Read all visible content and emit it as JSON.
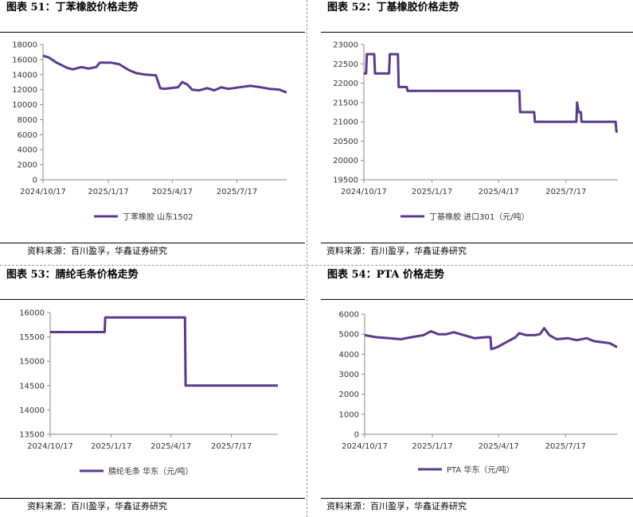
{
  "line_color": "#5a3a8c",
  "source_text": "资料来源：百川盈孚，华鑫证券研究",
  "panels": [
    {
      "title": "图表 51：丁苯橡胶价格走势",
      "legend": "丁苯橡胶 山东1502"
    },
    {
      "title": "图表 52：丁基橡胶价格走势",
      "legend": "丁基橡胶 进口301（元/吨）"
    },
    {
      "title": "图表 53：腈纶毛条价格走势",
      "legend": "腈纶毛条 华东（元/吨）"
    },
    {
      "title": "图表 54：PTA 价格走势",
      "legend": "PTA 华东（元/吨）"
    }
  ],
  "chart_data": [
    {
      "type": "line",
      "title": "丁苯橡胶价格走势",
      "series": [
        {
          "name": "丁苯橡胶 山东1502",
          "points": [
            [
              "2024-10-17",
              16500
            ],
            [
              "2024-10-25",
              16300
            ],
            [
              "2024-11-05",
              15600
            ],
            [
              "2024-11-20",
              14900
            ],
            [
              "2024-11-28",
              14700
            ],
            [
              "2024-12-10",
              15000
            ],
            [
              "2024-12-20",
              14800
            ],
            [
              "2024-12-31",
              15000
            ],
            [
              "2025-01-05",
              15600
            ],
            [
              "2025-01-20",
              15600
            ],
            [
              "2025-02-01",
              15400
            ],
            [
              "2025-02-15",
              14600
            ],
            [
              "2025-02-25",
              14200
            ],
            [
              "2025-03-10",
              14000
            ],
            [
              "2025-03-25",
              13900
            ],
            [
              "2025-03-31",
              12200
            ],
            [
              "2025-04-05",
              12100
            ],
            [
              "2025-04-15",
              12200
            ],
            [
              "2025-04-25",
              12300
            ],
            [
              "2025-05-01",
              13000
            ],
            [
              "2025-05-08",
              12700
            ],
            [
              "2025-05-15",
              12000
            ],
            [
              "2025-05-25",
              11900
            ],
            [
              "2025-06-05",
              12200
            ],
            [
              "2025-06-15",
              11900
            ],
            [
              "2025-06-25",
              12300
            ],
            [
              "2025-07-05",
              12100
            ],
            [
              "2025-07-20",
              12300
            ],
            [
              "2025-08-05",
              12500
            ],
            [
              "2025-08-20",
              12300
            ],
            [
              "2025-09-01",
              12100
            ],
            [
              "2025-09-15",
              12000
            ],
            [
              "2025-09-25",
              11600
            ]
          ]
        }
      ],
      "x_ticks": [
        "2024/10/17",
        "2025/1/17",
        "2025/4/17",
        "2025/7/17"
      ],
      "y_ticks": [
        0,
        2000,
        4000,
        6000,
        8000,
        10000,
        12000,
        14000,
        16000,
        18000
      ],
      "ylim": [
        0,
        18000
      ]
    },
    {
      "type": "line",
      "title": "丁基橡胶价格走势",
      "series": [
        {
          "name": "丁基橡胶 进口301（元/吨）",
          "points": [
            [
              "2024-10-17",
              22250
            ],
            [
              "2024-10-20",
              22250
            ],
            [
              "2024-10-21",
              22750
            ],
            [
              "2024-10-31",
              22750
            ],
            [
              "2024-11-01",
              22250
            ],
            [
              "2024-11-20",
              22250
            ],
            [
              "2024-11-21",
              22750
            ],
            [
              "2024-12-02",
              22750
            ],
            [
              "2024-12-03",
              21900
            ],
            [
              "2024-12-14",
              21900
            ],
            [
              "2024-12-15",
              21800
            ],
            [
              "2025-05-15",
              21800
            ],
            [
              "2025-05-16",
              21250
            ],
            [
              "2025-06-04",
              21250
            ],
            [
              "2025-06-05",
              21000
            ],
            [
              "2025-07-31",
              21000
            ],
            [
              "2025-08-01",
              21500
            ],
            [
              "2025-08-03",
              21250
            ],
            [
              "2025-08-06",
              21250
            ],
            [
              "2025-08-07",
              21000
            ],
            [
              "2025-09-22",
              21000
            ],
            [
              "2025-09-23",
              20750
            ],
            [
              "2025-09-25",
              20750
            ]
          ]
        }
      ],
      "x_ticks": [
        "2024/10/17",
        "2025/1/17",
        "2025/4/17",
        "2025/7/17"
      ],
      "y_ticks": [
        19500,
        20000,
        20500,
        21000,
        21500,
        22000,
        22500,
        23000
      ],
      "ylim": [
        19500,
        23000
      ]
    },
    {
      "type": "line",
      "title": "腈纶毛条价格走势",
      "series": [
        {
          "name": "腈纶毛条 华东（元/吨）",
          "points": [
            [
              "2024-10-17",
              15600
            ],
            [
              "2025-01-07",
              15600
            ],
            [
              "2025-01-08",
              15900
            ],
            [
              "2025-05-08",
              15900
            ],
            [
              "2025-05-09",
              14500
            ],
            [
              "2025-09-25",
              14500
            ]
          ]
        }
      ],
      "x_ticks": [
        "2024/10/17",
        "2025/1/17",
        "2025/4/17",
        "2025/7/17"
      ],
      "y_ticks": [
        13500,
        14000,
        14500,
        15000,
        15500,
        16000
      ],
      "ylim": [
        13500,
        16000
      ]
    },
    {
      "type": "line",
      "title": "PTA 价格走势",
      "series": [
        {
          "name": "PTA 华东（元/吨）",
          "points": [
            [
              "2024-10-17",
              4950
            ],
            [
              "2024-11-01",
              4850
            ],
            [
              "2024-11-20",
              4800
            ],
            [
              "2024-12-05",
              4750
            ],
            [
              "2024-12-20",
              4850
            ],
            [
              "2025-01-05",
              4950
            ],
            [
              "2025-01-15",
              5150
            ],
            [
              "2025-01-25",
              5000
            ],
            [
              "2025-02-05",
              5000
            ],
            [
              "2025-02-15",
              5100
            ],
            [
              "2025-03-01",
              4950
            ],
            [
              "2025-03-15",
              4800
            ],
            [
              "2025-03-31",
              4850
            ],
            [
              "2025-04-06",
              4850
            ],
            [
              "2025-04-07",
              4250
            ],
            [
              "2025-04-15",
              4350
            ],
            [
              "2025-04-30",
              4650
            ],
            [
              "2025-05-10",
              4850
            ],
            [
              "2025-05-15",
              5050
            ],
            [
              "2025-05-25",
              4950
            ],
            [
              "2025-06-05",
              4950
            ],
            [
              "2025-06-12",
              5000
            ],
            [
              "2025-06-18",
              5300
            ],
            [
              "2025-06-25",
              4950
            ],
            [
              "2025-07-05",
              4750
            ],
            [
              "2025-07-20",
              4800
            ],
            [
              "2025-08-01",
              4700
            ],
            [
              "2025-08-15",
              4800
            ],
            [
              "2025-08-25",
              4650
            ],
            [
              "2025-09-05",
              4600
            ],
            [
              "2025-09-15",
              4550
            ],
            [
              "2025-09-25",
              4350
            ]
          ]
        }
      ],
      "x_ticks": [
        "2024/10/17",
        "2025/1/17",
        "2025/4/17",
        "2025/7/17"
      ],
      "y_ticks": [
        0,
        1000,
        2000,
        3000,
        4000,
        5000,
        6000
      ],
      "ylim": [
        0,
        6000
      ]
    }
  ]
}
